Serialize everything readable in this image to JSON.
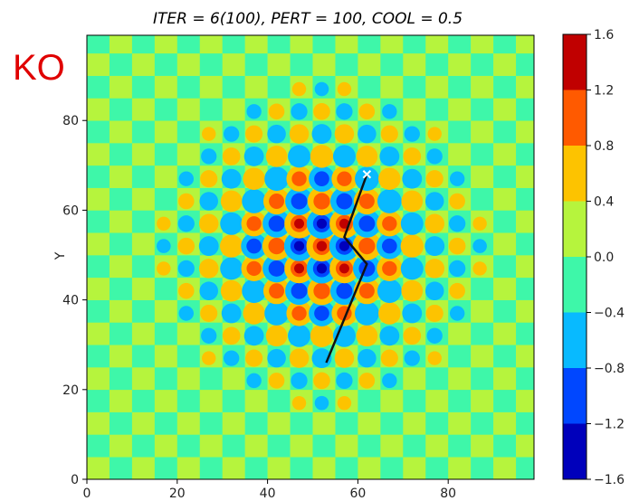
{
  "ko_tag": "KO",
  "chart_data": {
    "type": "heatmap",
    "title": "ITER = 6(100), PERT = 100, COOL = 0.5",
    "xlabel": "",
    "ylabel": "Y",
    "colorbar_label": "",
    "xlim": [
      0,
      99
    ],
    "ylim": [
      0,
      99
    ],
    "x_ticks": [
      0,
      20,
      40,
      60,
      80
    ],
    "y_ticks": [
      0,
      20,
      40,
      60,
      80
    ],
    "colorbar_ticks": [
      1.6,
      1.2,
      0.8,
      0.4,
      0.0,
      -0.4,
      -0.8,
      -1.2,
      -1.6
    ],
    "colorbar_levels": [
      {
        "range": [
          1.2,
          1.6
        ],
        "color": "#c00000"
      },
      {
        "range": [
          0.8,
          1.2
        ],
        "color": "#ff5a00"
      },
      {
        "range": [
          0.4,
          0.8
        ],
        "color": "#fdc300"
      },
      {
        "range": [
          0.0,
          0.4
        ],
        "color": "#b6f43d"
      },
      {
        "range": [
          -0.4,
          0.0
        ],
        "color": "#3ef7a9"
      },
      {
        "range": [
          -0.8,
          -0.4
        ],
        "color": "#08baff"
      },
      {
        "range": [
          -1.2,
          -0.8
        ],
        "color": "#0047ff"
      },
      {
        "range": [
          -1.6,
          -1.2
        ],
        "color": "#0000bb"
      }
    ],
    "checkerboard_period": 5,
    "spot_center": [
      52,
      52
    ],
    "path": {
      "x": [
        53,
        62,
        57,
        62
      ],
      "y": [
        26,
        48,
        54,
        68
      ],
      "color": "#111111"
    },
    "start_marker": {
      "x": 62,
      "y": 68
    }
  }
}
